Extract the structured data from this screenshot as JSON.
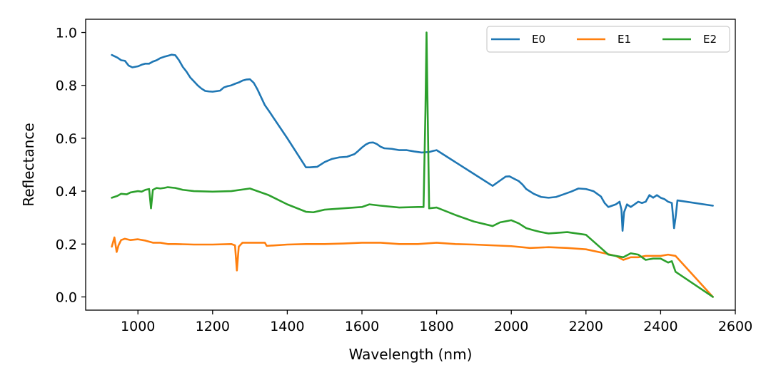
{
  "chart_data": {
    "type": "line",
    "xlabel": "Wavelength (nm)",
    "ylabel": "Reflectance",
    "xlim": [
      860,
      2600
    ],
    "ylim": [
      -0.05,
      1.05
    ],
    "xticks": [
      1000,
      1200,
      1400,
      1600,
      1800,
      2000,
      2200,
      2400,
      2600
    ],
    "yticks": [
      0.0,
      0.2,
      0.4,
      0.6,
      0.8,
      1.0
    ],
    "xtick_labels": [
      "1000",
      "1200",
      "1400",
      "1600",
      "1800",
      "2000",
      "2200",
      "2400",
      "2600"
    ],
    "ytick_labels": [
      "0.0",
      "0.2",
      "0.4",
      "0.6",
      "0.8",
      "1.0"
    ],
    "grid": false,
    "legend_position": "top-right",
    "series": [
      {
        "name": "E0",
        "color": "#1f77b4",
        "points": [
          [
            930,
            0.915
          ],
          [
            945,
            0.905
          ],
          [
            955,
            0.895
          ],
          [
            965,
            0.893
          ],
          [
            975,
            0.875
          ],
          [
            985,
            0.868
          ],
          [
            1000,
            0.872
          ],
          [
            1010,
            0.878
          ],
          [
            1020,
            0.882
          ],
          [
            1030,
            0.882
          ],
          [
            1040,
            0.89
          ],
          [
            1050,
            0.895
          ],
          [
            1060,
            0.903
          ],
          [
            1070,
            0.908
          ],
          [
            1080,
            0.912
          ],
          [
            1090,
            0.916
          ],
          [
            1100,
            0.914
          ],
          [
            1110,
            0.895
          ],
          [
            1120,
            0.87
          ],
          [
            1130,
            0.852
          ],
          [
            1140,
            0.83
          ],
          [
            1150,
            0.815
          ],
          [
            1160,
            0.8
          ],
          [
            1170,
            0.788
          ],
          [
            1180,
            0.779
          ],
          [
            1190,
            0.777
          ],
          [
            1200,
            0.776
          ],
          [
            1210,
            0.778
          ],
          [
            1220,
            0.78
          ],
          [
            1230,
            0.792
          ],
          [
            1240,
            0.797
          ],
          [
            1250,
            0.8
          ],
          [
            1260,
            0.806
          ],
          [
            1270,
            0.811
          ],
          [
            1280,
            0.818
          ],
          [
            1290,
            0.822
          ],
          [
            1300,
            0.823
          ],
          [
            1310,
            0.81
          ],
          [
            1320,
            0.785
          ],
          [
            1330,
            0.755
          ],
          [
            1340,
            0.725
          ],
          [
            1350,
            0.705
          ],
          [
            1400,
            0.6
          ],
          [
            1450,
            0.49
          ],
          [
            1460,
            0.49
          ],
          [
            1480,
            0.492
          ],
          [
            1500,
            0.51
          ],
          [
            1520,
            0.522
          ],
          [
            1540,
            0.528
          ],
          [
            1560,
            0.53
          ],
          [
            1580,
            0.54
          ],
          [
            1590,
            0.552
          ],
          [
            1600,
            0.565
          ],
          [
            1610,
            0.576
          ],
          [
            1620,
            0.583
          ],
          [
            1630,
            0.584
          ],
          [
            1640,
            0.578
          ],
          [
            1650,
            0.568
          ],
          [
            1660,
            0.562
          ],
          [
            1680,
            0.56
          ],
          [
            1700,
            0.555
          ],
          [
            1720,
            0.555
          ],
          [
            1740,
            0.55
          ],
          [
            1760,
            0.546
          ],
          [
            1780,
            0.548
          ],
          [
            1790,
            0.552
          ],
          [
            1800,
            0.555
          ],
          [
            1850,
            0.51
          ],
          [
            1900,
            0.465
          ],
          [
            1950,
            0.42
          ],
          [
            1970,
            0.44
          ],
          [
            1985,
            0.455
          ],
          [
            1995,
            0.456
          ],
          [
            2010,
            0.445
          ],
          [
            2020,
            0.438
          ],
          [
            2030,
            0.425
          ],
          [
            2040,
            0.408
          ],
          [
            2060,
            0.39
          ],
          [
            2080,
            0.378
          ],
          [
            2100,
            0.375
          ],
          [
            2120,
            0.378
          ],
          [
            2140,
            0.388
          ],
          [
            2160,
            0.398
          ],
          [
            2180,
            0.41
          ],
          [
            2200,
            0.408
          ],
          [
            2220,
            0.4
          ],
          [
            2240,
            0.38
          ],
          [
            2250,
            0.355
          ],
          [
            2260,
            0.34
          ],
          [
            2280,
            0.35
          ],
          [
            2290,
            0.36
          ],
          [
            2295,
            0.33
          ],
          [
            2298,
            0.25
          ],
          [
            2302,
            0.32
          ],
          [
            2310,
            0.35
          ],
          [
            2320,
            0.34
          ],
          [
            2330,
            0.35
          ],
          [
            2340,
            0.36
          ],
          [
            2350,
            0.355
          ],
          [
            2360,
            0.36
          ],
          [
            2370,
            0.385
          ],
          [
            2380,
            0.375
          ],
          [
            2390,
            0.385
          ],
          [
            2400,
            0.375
          ],
          [
            2410,
            0.37
          ],
          [
            2420,
            0.36
          ],
          [
            2430,
            0.355
          ],
          [
            2436,
            0.26
          ],
          [
            2440,
            0.3
          ],
          [
            2445,
            0.365
          ],
          [
            2540,
            0.345
          ]
        ]
      },
      {
        "name": "E1",
        "color": "#ff7f0e",
        "points": [
          [
            930,
            0.19
          ],
          [
            937,
            0.225
          ],
          [
            943,
            0.17
          ],
          [
            948,
            0.195
          ],
          [
            955,
            0.215
          ],
          [
            965,
            0.22
          ],
          [
            980,
            0.215
          ],
          [
            1000,
            0.218
          ],
          [
            1020,
            0.213
          ],
          [
            1040,
            0.205
          ],
          [
            1060,
            0.205
          ],
          [
            1080,
            0.2
          ],
          [
            1100,
            0.2
          ],
          [
            1150,
            0.198
          ],
          [
            1200,
            0.198
          ],
          [
            1250,
            0.2
          ],
          [
            1260,
            0.195
          ],
          [
            1265,
            0.1
          ],
          [
            1270,
            0.19
          ],
          [
            1280,
            0.205
          ],
          [
            1300,
            0.205
          ],
          [
            1340,
            0.205
          ],
          [
            1345,
            0.193
          ],
          [
            1400,
            0.198
          ],
          [
            1450,
            0.2
          ],
          [
            1500,
            0.2
          ],
          [
            1550,
            0.202
          ],
          [
            1600,
            0.205
          ],
          [
            1650,
            0.205
          ],
          [
            1700,
            0.2
          ],
          [
            1750,
            0.2
          ],
          [
            1800,
            0.205
          ],
          [
            1850,
            0.2
          ],
          [
            1900,
            0.198
          ],
          [
            1950,
            0.195
          ],
          [
            2000,
            0.192
          ],
          [
            2050,
            0.185
          ],
          [
            2100,
            0.188
          ],
          [
            2150,
            0.185
          ],
          [
            2200,
            0.18
          ],
          [
            2250,
            0.165
          ],
          [
            2280,
            0.155
          ],
          [
            2300,
            0.14
          ],
          [
            2320,
            0.15
          ],
          [
            2340,
            0.15
          ],
          [
            2360,
            0.155
          ],
          [
            2380,
            0.155
          ],
          [
            2400,
            0.155
          ],
          [
            2420,
            0.16
          ],
          [
            2440,
            0.155
          ],
          [
            2540,
            0.0
          ]
        ]
      },
      {
        "name": "E2",
        "color": "#2ca02c",
        "points": [
          [
            930,
            0.375
          ],
          [
            945,
            0.382
          ],
          [
            955,
            0.39
          ],
          [
            970,
            0.388
          ],
          [
            980,
            0.395
          ],
          [
            1000,
            0.4
          ],
          [
            1010,
            0.398
          ],
          [
            1020,
            0.405
          ],
          [
            1030,
            0.408
          ],
          [
            1035,
            0.335
          ],
          [
            1040,
            0.405
          ],
          [
            1050,
            0.412
          ],
          [
            1060,
            0.41
          ],
          [
            1070,
            0.412
          ],
          [
            1080,
            0.415
          ],
          [
            1100,
            0.412
          ],
          [
            1120,
            0.405
          ],
          [
            1150,
            0.4
          ],
          [
            1200,
            0.398
          ],
          [
            1250,
            0.4
          ],
          [
            1300,
            0.41
          ],
          [
            1350,
            0.385
          ],
          [
            1400,
            0.35
          ],
          [
            1450,
            0.322
          ],
          [
            1470,
            0.32
          ],
          [
            1500,
            0.33
          ],
          [
            1550,
            0.335
          ],
          [
            1600,
            0.34
          ],
          [
            1620,
            0.35
          ],
          [
            1650,
            0.345
          ],
          [
            1700,
            0.338
          ],
          [
            1750,
            0.34
          ],
          [
            1765,
            0.34
          ],
          [
            1770,
            0.7
          ],
          [
            1773,
            1.0
          ],
          [
            1776,
            0.7
          ],
          [
            1780,
            0.335
          ],
          [
            1800,
            0.338
          ],
          [
            1850,
            0.31
          ],
          [
            1900,
            0.285
          ],
          [
            1950,
            0.268
          ],
          [
            1970,
            0.282
          ],
          [
            2000,
            0.29
          ],
          [
            2020,
            0.278
          ],
          [
            2040,
            0.26
          ],
          [
            2060,
            0.252
          ],
          [
            2080,
            0.245
          ],
          [
            2100,
            0.24
          ],
          [
            2150,
            0.245
          ],
          [
            2200,
            0.235
          ],
          [
            2220,
            0.21
          ],
          [
            2240,
            0.185
          ],
          [
            2260,
            0.16
          ],
          [
            2280,
            0.155
          ],
          [
            2300,
            0.15
          ],
          [
            2320,
            0.165
          ],
          [
            2340,
            0.16
          ],
          [
            2360,
            0.14
          ],
          [
            2380,
            0.145
          ],
          [
            2400,
            0.145
          ],
          [
            2420,
            0.13
          ],
          [
            2430,
            0.135
          ],
          [
            2440,
            0.095
          ],
          [
            2540,
            0.0
          ]
        ]
      }
    ]
  }
}
